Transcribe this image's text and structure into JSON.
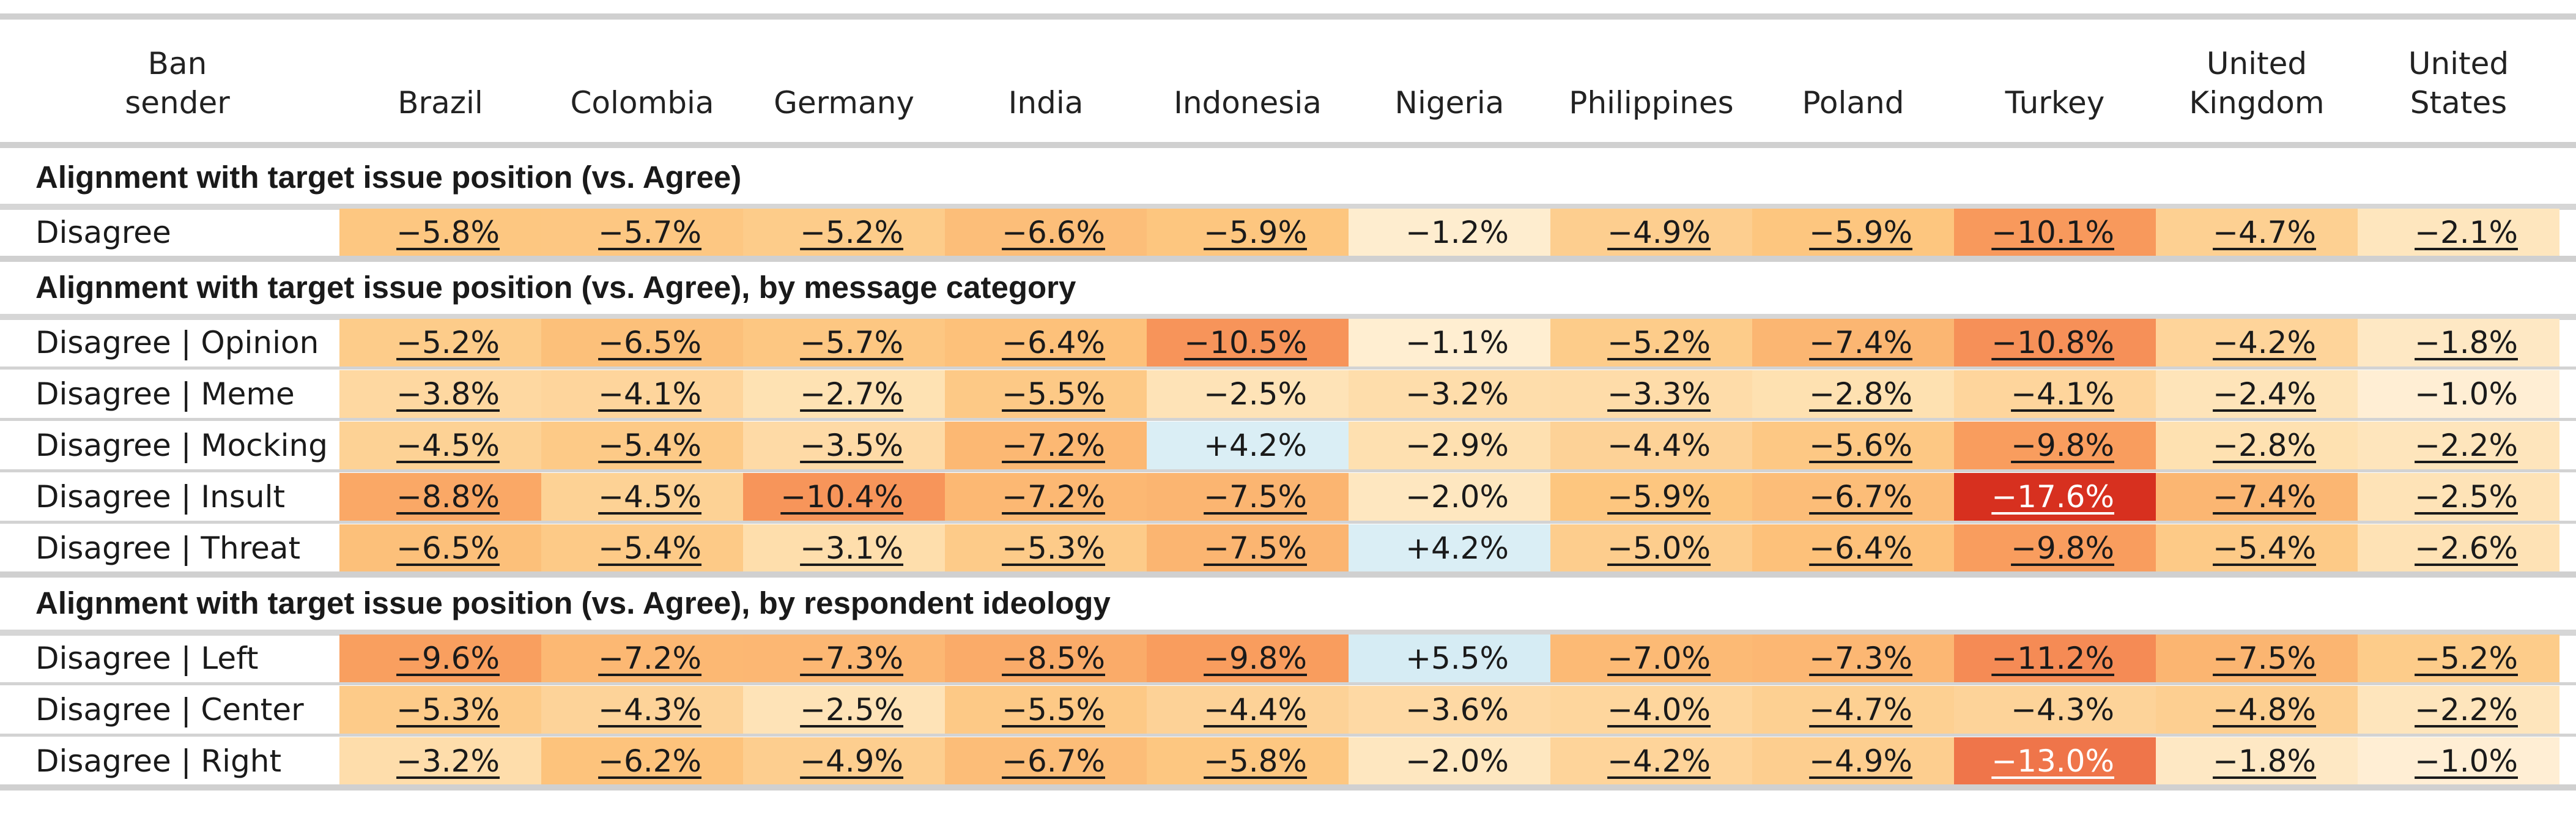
{
  "chart_data": {
    "type": "table",
    "header": {
      "row_label_header": [
        "Ban",
        "sender"
      ],
      "columns": [
        [
          "Brazil"
        ],
        [
          "Colombia"
        ],
        [
          "Germany"
        ],
        [
          "India"
        ],
        [
          "Indonesia"
        ],
        [
          "Nigeria"
        ],
        [
          "Philippines"
        ],
        [
          "Poland"
        ],
        [
          "Turkey"
        ],
        [
          "United",
          "Kingdom"
        ],
        [
          "United",
          "States"
        ]
      ]
    },
    "sections": [
      {
        "title": "Alignment with target issue position (vs. Agree)",
        "rows": [
          {
            "label": "Disagree",
            "cells": [
              {
                "text": "−5.8%",
                "value": -5.8,
                "sig": true
              },
              {
                "text": "−5.7%",
                "value": -5.7,
                "sig": true
              },
              {
                "text": "−5.2%",
                "value": -5.2,
                "sig": true
              },
              {
                "text": "−6.6%",
                "value": -6.6,
                "sig": true
              },
              {
                "text": "−5.9%",
                "value": -5.9,
                "sig": true
              },
              {
                "text": "−1.2%",
                "value": -1.2,
                "sig": false
              },
              {
                "text": "−4.9%",
                "value": -4.9,
                "sig": true
              },
              {
                "text": "−5.9%",
                "value": -5.9,
                "sig": true
              },
              {
                "text": "−10.1%",
                "value": -10.1,
                "sig": true
              },
              {
                "text": "−4.7%",
                "value": -4.7,
                "sig": true
              },
              {
                "text": "−2.1%",
                "value": -2.1,
                "sig": true
              }
            ]
          }
        ]
      },
      {
        "title": "Alignment with target issue position (vs. Agree), by message category",
        "rows": [
          {
            "label": "Disagree | Opinion",
            "cells": [
              {
                "text": "−5.2%",
                "value": -5.2,
                "sig": true
              },
              {
                "text": "−6.5%",
                "value": -6.5,
                "sig": true
              },
              {
                "text": "−5.7%",
                "value": -5.7,
                "sig": true
              },
              {
                "text": "−6.4%",
                "value": -6.4,
                "sig": true
              },
              {
                "text": "−10.5%",
                "value": -10.5,
                "sig": true
              },
              {
                "text": "−1.1%",
                "value": -1.1,
                "sig": false
              },
              {
                "text": "−5.2%",
                "value": -5.2,
                "sig": true
              },
              {
                "text": "−7.4%",
                "value": -7.4,
                "sig": true
              },
              {
                "text": "−10.8%",
                "value": -10.8,
                "sig": true
              },
              {
                "text": "−4.2%",
                "value": -4.2,
                "sig": true
              },
              {
                "text": "−1.8%",
                "value": -1.8,
                "sig": true
              }
            ]
          },
          {
            "label": "Disagree | Meme",
            "cells": [
              {
                "text": "−3.8%",
                "value": -3.8,
                "sig": true
              },
              {
                "text": "−4.1%",
                "value": -4.1,
                "sig": true
              },
              {
                "text": "−2.7%",
                "value": -2.7,
                "sig": true
              },
              {
                "text": "−5.5%",
                "value": -5.5,
                "sig": true
              },
              {
                "text": "−2.5%",
                "value": -2.5,
                "sig": false
              },
              {
                "text": "−3.2%",
                "value": -3.2,
                "sig": false
              },
              {
                "text": "−3.3%",
                "value": -3.3,
                "sig": true
              },
              {
                "text": "−2.8%",
                "value": -2.8,
                "sig": true
              },
              {
                "text": "−4.1%",
                "value": -4.1,
                "sig": true
              },
              {
                "text": "−2.4%",
                "value": -2.4,
                "sig": true
              },
              {
                "text": "−1.0%",
                "value": -1.0,
                "sig": false
              }
            ]
          },
          {
            "label": "Disagree | Mocking",
            "cells": [
              {
                "text": "−4.5%",
                "value": -4.5,
                "sig": true
              },
              {
                "text": "−5.4%",
                "value": -5.4,
                "sig": true
              },
              {
                "text": "−3.5%",
                "value": -3.5,
                "sig": true
              },
              {
                "text": "−7.2%",
                "value": -7.2,
                "sig": true
              },
              {
                "text": "+4.2%",
                "value": 4.2,
                "sig": false
              },
              {
                "text": "−2.9%",
                "value": -2.9,
                "sig": false
              },
              {
                "text": "−4.4%",
                "value": -4.4,
                "sig": false
              },
              {
                "text": "−5.6%",
                "value": -5.6,
                "sig": true
              },
              {
                "text": "−9.8%",
                "value": -9.8,
                "sig": true
              },
              {
                "text": "−2.8%",
                "value": -2.8,
                "sig": true
              },
              {
                "text": "−2.2%",
                "value": -2.2,
                "sig": true
              }
            ]
          },
          {
            "label": "Disagree | Insult",
            "cells": [
              {
                "text": "−8.8%",
                "value": -8.8,
                "sig": true
              },
              {
                "text": "−4.5%",
                "value": -4.5,
                "sig": true
              },
              {
                "text": "−10.4%",
                "value": -10.4,
                "sig": true
              },
              {
                "text": "−7.2%",
                "value": -7.2,
                "sig": true
              },
              {
                "text": "−7.5%",
                "value": -7.5,
                "sig": true
              },
              {
                "text": "−2.0%",
                "value": -2.0,
                "sig": false
              },
              {
                "text": "−5.9%",
                "value": -5.9,
                "sig": true
              },
              {
                "text": "−6.7%",
                "value": -6.7,
                "sig": true
              },
              {
                "text": "−17.6%",
                "value": -17.6,
                "sig": true
              },
              {
                "text": "−7.4%",
                "value": -7.4,
                "sig": true
              },
              {
                "text": "−2.5%",
                "value": -2.5,
                "sig": true
              }
            ]
          },
          {
            "label": "Disagree | Threat",
            "cells": [
              {
                "text": "−6.5%",
                "value": -6.5,
                "sig": true
              },
              {
                "text": "−5.4%",
                "value": -5.4,
                "sig": true
              },
              {
                "text": "−3.1%",
                "value": -3.1,
                "sig": true
              },
              {
                "text": "−5.3%",
                "value": -5.3,
                "sig": true
              },
              {
                "text": "−7.5%",
                "value": -7.5,
                "sig": true
              },
              {
                "text": "+4.2%",
                "value": 4.2,
                "sig": false
              },
              {
                "text": "−5.0%",
                "value": -5.0,
                "sig": true
              },
              {
                "text": "−6.4%",
                "value": -6.4,
                "sig": true
              },
              {
                "text": "−9.8%",
                "value": -9.8,
                "sig": true
              },
              {
                "text": "−5.4%",
                "value": -5.4,
                "sig": true
              },
              {
                "text": "−2.6%",
                "value": -2.6,
                "sig": true
              }
            ]
          }
        ]
      },
      {
        "title": "Alignment with target issue position (vs. Agree), by respondent ideology",
        "rows": [
          {
            "label": "Disagree | Left",
            "cells": [
              {
                "text": "−9.6%",
                "value": -9.6,
                "sig": true
              },
              {
                "text": "−7.2%",
                "value": -7.2,
                "sig": true
              },
              {
                "text": "−7.3%",
                "value": -7.3,
                "sig": true
              },
              {
                "text": "−8.5%",
                "value": -8.5,
                "sig": true
              },
              {
                "text": "−9.8%",
                "value": -9.8,
                "sig": true
              },
              {
                "text": "+5.5%",
                "value": 5.5,
                "sig": false
              },
              {
                "text": "−7.0%",
                "value": -7.0,
                "sig": true
              },
              {
                "text": "−7.3%",
                "value": -7.3,
                "sig": true
              },
              {
                "text": "−11.2%",
                "value": -11.2,
                "sig": true
              },
              {
                "text": "−7.5%",
                "value": -7.5,
                "sig": true
              },
              {
                "text": "−5.2%",
                "value": -5.2,
                "sig": true
              }
            ]
          },
          {
            "label": "Disagree | Center",
            "cells": [
              {
                "text": "−5.3%",
                "value": -5.3,
                "sig": true
              },
              {
                "text": "−4.3%",
                "value": -4.3,
                "sig": true
              },
              {
                "text": "−2.5%",
                "value": -2.5,
                "sig": true
              },
              {
                "text": "−5.5%",
                "value": -5.5,
                "sig": true
              },
              {
                "text": "−4.4%",
                "value": -4.4,
                "sig": true
              },
              {
                "text": "−3.6%",
                "value": -3.6,
                "sig": false
              },
              {
                "text": "−4.0%",
                "value": -4.0,
                "sig": true
              },
              {
                "text": "−4.7%",
                "value": -4.7,
                "sig": true
              },
              {
                "text": "−4.3%",
                "value": -4.3,
                "sig": false
              },
              {
                "text": "−4.8%",
                "value": -4.8,
                "sig": true
              },
              {
                "text": "−2.2%",
                "value": -2.2,
                "sig": true
              }
            ]
          },
          {
            "label": "Disagree | Right",
            "cells": [
              {
                "text": "−3.2%",
                "value": -3.2,
                "sig": true
              },
              {
                "text": "−6.2%",
                "value": -6.2,
                "sig": true
              },
              {
                "text": "−4.9%",
                "value": -4.9,
                "sig": true
              },
              {
                "text": "−6.7%",
                "value": -6.7,
                "sig": true
              },
              {
                "text": "−5.8%",
                "value": -5.8,
                "sig": true
              },
              {
                "text": "−2.0%",
                "value": -2.0,
                "sig": false
              },
              {
                "text": "−4.2%",
                "value": -4.2,
                "sig": true
              },
              {
                "text": "−4.9%",
                "value": -4.9,
                "sig": true
              },
              {
                "text": "−13.0%",
                "value": -13.0,
                "sig": true
              },
              {
                "text": "−1.8%",
                "value": -1.8,
                "sig": true
              },
              {
                "text": "−1.0%",
                "value": -1.0,
                "sig": true
              }
            ]
          }
        ]
      }
    ],
    "color_scale": {
      "negative": [
        "#fff8ec",
        "#fee2b4",
        "#fdc57e",
        "#f99f5f",
        "#ee6e47",
        "#d7301f"
      ],
      "positive": [
        "#f2f9fc",
        "#d6ecf4",
        "#b2dcec"
      ],
      "max_negative_abs": 17.6,
      "max_positive_abs": 17.6
    }
  }
}
